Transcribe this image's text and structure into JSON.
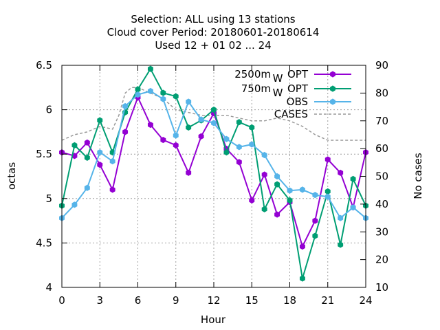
{
  "chart_data": {
    "type": "line",
    "title_lines": [
      "Selection: ALL using    13 stations",
      "Cloud cover   Period: 20180601-20180614",
      "Used  12 + 01 02 ... 24"
    ],
    "xlabel": "Hour",
    "ylabel": "octas",
    "y2label": "No cases",
    "xlim": [
      0,
      24
    ],
    "ylim": [
      4,
      6.5
    ],
    "y2lim": [
      10,
      90
    ],
    "xticks": [
      0,
      3,
      6,
      9,
      12,
      15,
      18,
      21,
      24
    ],
    "yticks": [
      4,
      4.5,
      5,
      5.5,
      6,
      6.5
    ],
    "y2ticks": [
      10,
      20,
      30,
      40,
      50,
      60,
      70,
      80,
      90
    ],
    "grid": true,
    "legend_position": "top-right",
    "x": [
      0,
      1,
      2,
      3,
      4,
      5,
      6,
      7,
      8,
      9,
      10,
      11,
      12,
      13,
      14,
      15,
      16,
      17,
      18,
      19,
      20,
      21,
      22,
      23,
      24
    ],
    "series": [
      {
        "legend_main": "2500m",
        "legend_sub": "W",
        "legend_tail": "OPT",
        "color": "#9400d3",
        "axis": "y",
        "marker": "hexagon",
        "values": [
          5.52,
          5.48,
          5.63,
          5.38,
          5.1,
          5.75,
          6.14,
          5.83,
          5.66,
          5.6,
          5.29,
          5.7,
          5.96,
          5.56,
          5.41,
          4.98,
          5.27,
          4.82,
          4.96,
          4.46,
          4.75,
          5.44,
          5.29,
          4.9,
          5.52
        ]
      },
      {
        "legend_main": "750m",
        "legend_sub": "W",
        "legend_tail": "OPT",
        "color": "#009e73",
        "axis": "y",
        "marker": "hexagon",
        "values": [
          4.92,
          5.6,
          5.46,
          5.88,
          5.52,
          5.97,
          6.23,
          6.46,
          6.19,
          6.15,
          5.8,
          5.88,
          6.0,
          5.52,
          5.86,
          5.8,
          4.88,
          5.16,
          4.98,
          4.1,
          4.58,
          5.08,
          4.48,
          5.22,
          4.92
        ]
      },
      {
        "legend_main": "OBS",
        "legend_sub": "",
        "legend_tail": "",
        "color": "#56b4e9",
        "axis": "y",
        "marker": "hexagon",
        "values": [
          4.78,
          4.93,
          5.12,
          5.52,
          5.42,
          6.04,
          6.17,
          6.21,
          6.12,
          5.71,
          6.09,
          5.89,
          5.85,
          5.67,
          5.58,
          5.61,
          5.49,
          5.25,
          5.09,
          5.1,
          5.04,
          5.02,
          4.78,
          4.9,
          4.78
        ]
      },
      {
        "legend_main": "CASES",
        "legend_sub": "",
        "legend_tail": "",
        "color": "#999999",
        "axis": "y2",
        "marker": "none",
        "dashed": true,
        "x": [
          0,
          1,
          2,
          3,
          4,
          4.5,
          5,
          5.5,
          6,
          6.5,
          7,
          8,
          9,
          10,
          11,
          12,
          13,
          14,
          15,
          16,
          17,
          18,
          19,
          20,
          21,
          22,
          23,
          24
        ],
        "values": [
          63,
          65,
          66,
          68,
          67,
          72,
          80,
          82,
          82,
          81,
          80,
          78,
          74,
          73,
          72,
          72,
          72,
          71,
          70,
          70,
          71,
          70,
          68,
          65,
          63,
          63,
          63,
          63
        ]
      }
    ]
  }
}
